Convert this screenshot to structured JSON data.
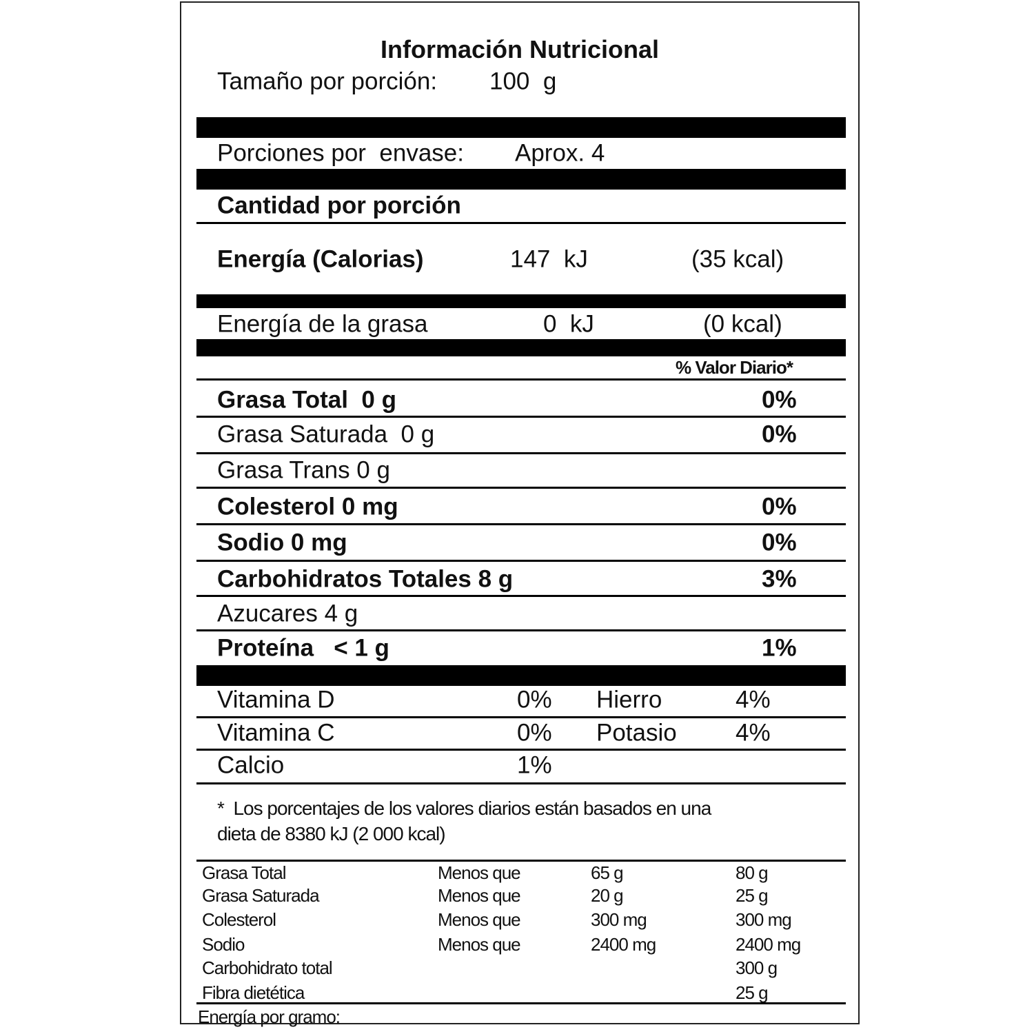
{
  "title": "Información Nutricional",
  "serving_size": {
    "label": "Tamaño por porción:",
    "value": "100  g"
  },
  "servings_per_container": {
    "label": "Porciones por  envase:",
    "value": "Aprox. 4"
  },
  "amount_per_serving": "Cantidad por porción",
  "energy": {
    "label": "Energía (Calorias)",
    "kj": "147  kJ",
    "kcal": "(35 kcal)"
  },
  "fat_energy": {
    "label": "Energía de la grasa",
    "kj": "0  kJ",
    "kcal": "(0 kcal)"
  },
  "daily_value_header": "% Valor Diario*",
  "nutrients": [
    {
      "label": "Grasa Total  0 g",
      "dv": "0%",
      "bold": true
    },
    {
      "label": "Grasa Saturada  0 g",
      "dv": "0%",
      "bold": false
    },
    {
      "label": "Grasa Trans 0 g",
      "dv": "",
      "bold": false
    },
    {
      "label": "Colesterol 0 mg",
      "dv": "0%",
      "bold": true
    },
    {
      "label": "Sodio 0 mg",
      "dv": "0%",
      "bold": true
    },
    {
      "label": "Carbohidratos Totales 8 g",
      "dv": "3%",
      "bold": true
    },
    {
      "label": "Azucares 4 g",
      "dv": "",
      "bold": false
    },
    {
      "label": "Proteína   < 1 g",
      "dv": "1%",
      "bold": true
    }
  ],
  "vitamins": [
    {
      "name": "Vitamina D",
      "value": "0%",
      "name2": "Hierro",
      "value2": "4%"
    },
    {
      "name": "Vitamina C",
      "value": "0%",
      "name2": "Potasio",
      "value2": "4%"
    },
    {
      "name": "Calcio",
      "value": "1%",
      "name2": "",
      "value2": ""
    }
  ],
  "footnote": [
    "*  Los porcentajes de los valores diarios están basados en una",
    "dieta de 8380 kJ (2 000 kcal)"
  ],
  "reference_table": [
    [
      "Grasa Total",
      "Menos que",
      "65 g",
      "80 g"
    ],
    [
      "Grasa Saturada",
      "Menos que",
      "20 g",
      "25 g"
    ],
    [
      "Colesterol",
      "Menos que",
      "300 mg",
      "300 mg"
    ],
    [
      "Sodio",
      "Menos que",
      "2400 mg",
      "2400 mg"
    ],
    [
      "Carbohidrato total",
      "",
      "",
      "300 g"
    ],
    [
      "Fibra dietética",
      "",
      "",
      "25 g"
    ]
  ],
  "energy_per_gram": "Energía por gramo:"
}
